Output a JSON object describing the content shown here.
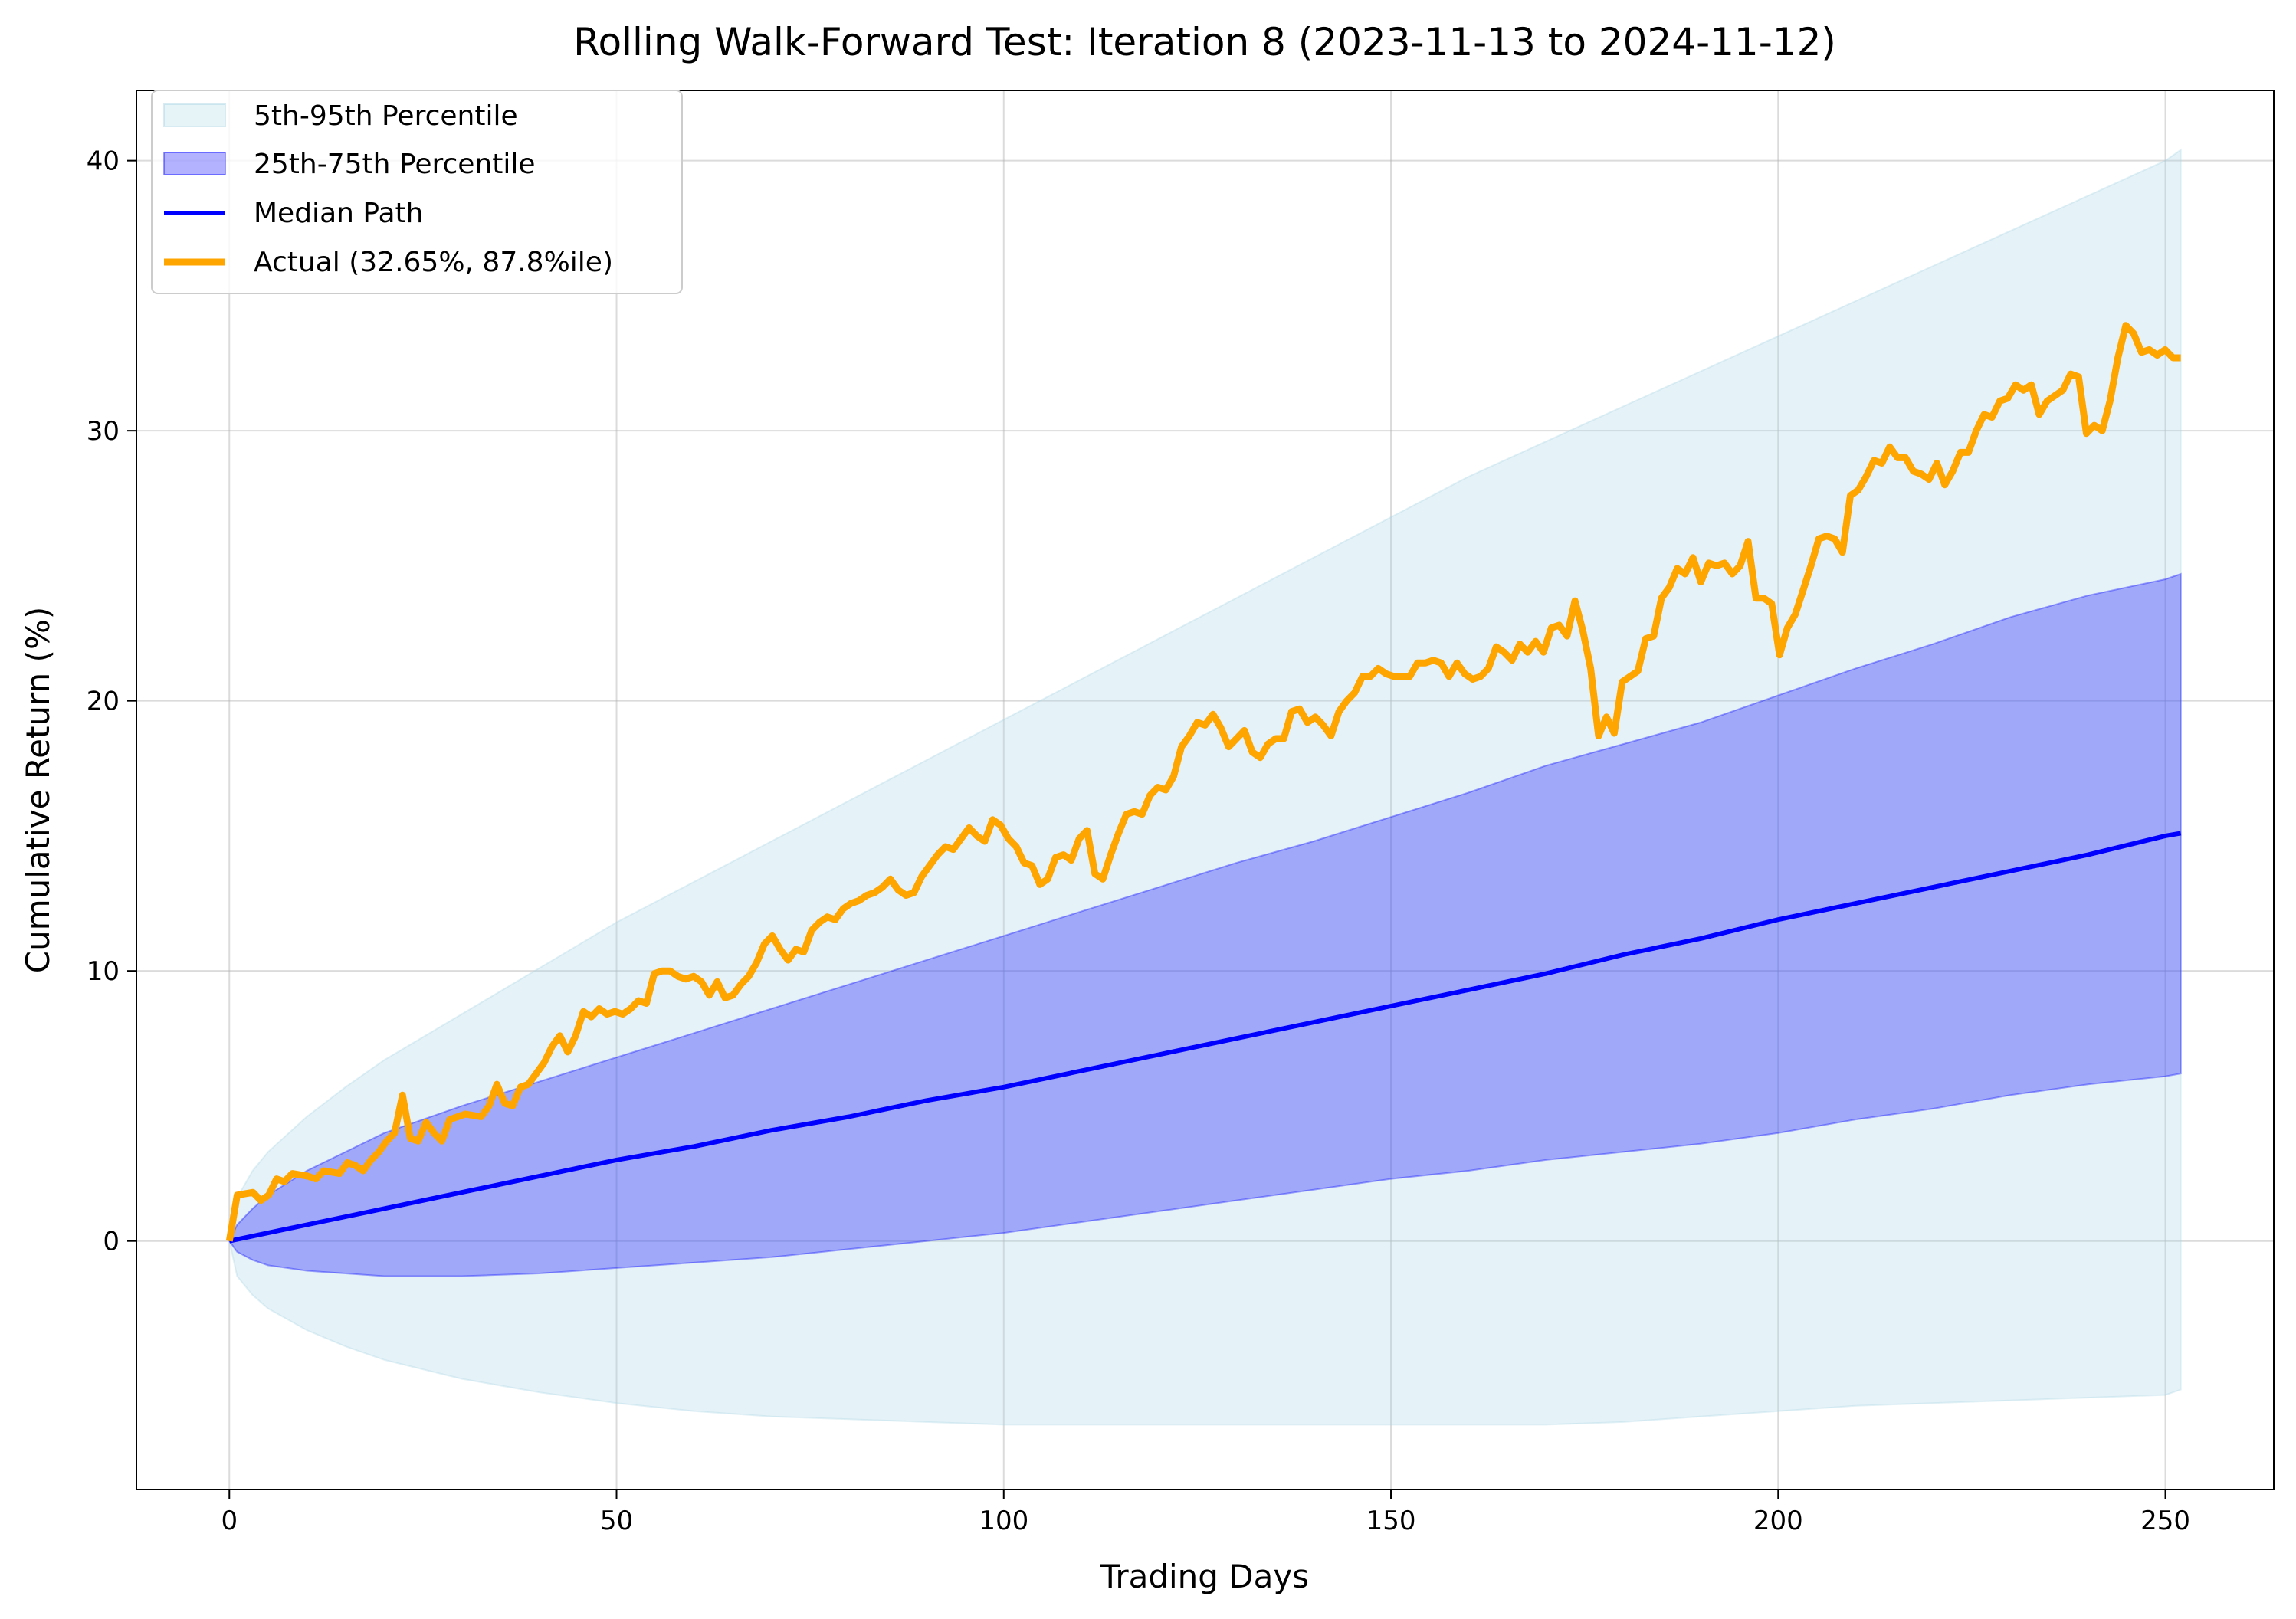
{
  "chart_data": {
    "type": "line",
    "title": "Rolling Walk-Forward Test: Iteration 8 (2023-11-13 to 2024-11-12)",
    "xlabel": "Trading Days",
    "ylabel": "Cumulative Return (%)",
    "xlim": [
      -12,
      264
    ],
    "ylim": [
      -9.2,
      42.6
    ],
    "xticks": [
      0,
      50,
      100,
      150,
      200,
      250
    ],
    "yticks": [
      0,
      10,
      20,
      30,
      40
    ],
    "grid": true,
    "legend_position": "top-left",
    "x": [
      0,
      1,
      3,
      5,
      10,
      15,
      20,
      30,
      40,
      50,
      60,
      70,
      80,
      90,
      100,
      110,
      120,
      130,
      140,
      150,
      160,
      170,
      180,
      190,
      200,
      210,
      220,
      230,
      240,
      250,
      252
    ],
    "series": [
      {
        "name": "5th-95th Percentile",
        "kind": "band",
        "color": "#add8e6",
        "lower": [
          0,
          -1.3,
          -2.0,
          -2.5,
          -3.3,
          -3.9,
          -4.4,
          -5.1,
          -5.6,
          -6.0,
          -6.3,
          -6.5,
          -6.6,
          -6.7,
          -6.8,
          -6.8,
          -6.8,
          -6.8,
          -6.8,
          -6.8,
          -6.8,
          -6.8,
          -6.7,
          -6.5,
          -6.3,
          -6.1,
          -6.0,
          -5.9,
          -5.8,
          -5.7,
          -5.5
        ],
        "upper": [
          0,
          1.6,
          2.6,
          3.3,
          4.6,
          5.7,
          6.7,
          8.4,
          10.1,
          11.8,
          13.3,
          14.8,
          16.3,
          17.8,
          19.3,
          20.8,
          22.3,
          23.8,
          25.3,
          26.8,
          28.3,
          29.6,
          30.9,
          32.2,
          33.5,
          34.8,
          36.1,
          37.4,
          38.7,
          40.0,
          40.4
        ]
      },
      {
        "name": "25th-75th Percentile",
        "kind": "band",
        "color": "#0000ff",
        "lower": [
          0,
          -0.4,
          -0.7,
          -0.9,
          -1.1,
          -1.2,
          -1.3,
          -1.3,
          -1.2,
          -1.0,
          -0.8,
          -0.6,
          -0.3,
          0.0,
          0.3,
          0.7,
          1.1,
          1.5,
          1.9,
          2.3,
          2.6,
          3.0,
          3.3,
          3.6,
          4.0,
          4.5,
          4.9,
          5.4,
          5.8,
          6.1,
          6.2
        ],
        "upper": [
          0,
          0.6,
          1.2,
          1.7,
          2.6,
          3.3,
          4.0,
          5.0,
          5.9,
          6.8,
          7.7,
          8.6,
          9.5,
          10.4,
          11.3,
          12.2,
          13.1,
          14.0,
          14.8,
          15.7,
          16.6,
          17.6,
          18.4,
          19.2,
          20.2,
          21.2,
          22.1,
          23.1,
          23.9,
          24.5,
          24.7
        ]
      },
      {
        "name": "Median Path",
        "kind": "line",
        "color": "#0000ff",
        "values": [
          0,
          0.06,
          0.18,
          0.3,
          0.6,
          0.9,
          1.2,
          1.8,
          2.4,
          3.0,
          3.5,
          4.1,
          4.6,
          5.2,
          5.7,
          6.3,
          6.9,
          7.5,
          8.1,
          8.7,
          9.3,
          9.9,
          10.6,
          11.2,
          11.9,
          12.5,
          13.1,
          13.7,
          14.3,
          15.0,
          15.1
        ]
      }
    ],
    "actual": {
      "name": "Actual (32.65%, 87.8%ile)",
      "color": "#ffa500",
      "points": [
        [
          0,
          0
        ],
        [
          1,
          1.7
        ],
        [
          3,
          1.8
        ],
        [
          4,
          1.5
        ],
        [
          5,
          1.7
        ],
        [
          6,
          2.3
        ],
        [
          7,
          2.2
        ],
        [
          8,
          2.5
        ],
        [
          10,
          2.4
        ],
        [
          11,
          2.3
        ],
        [
          12,
          2.6
        ],
        [
          14,
          2.5
        ],
        [
          15,
          2.9
        ],
        [
          16,
          2.8
        ],
        [
          17,
          2.6
        ],
        [
          18,
          3.0
        ],
        [
          19,
          3.3
        ],
        [
          20,
          3.7
        ],
        [
          21,
          4.0
        ],
        [
          22,
          5.4
        ],
        [
          23,
          3.8
        ],
        [
          24,
          3.7
        ],
        [
          25,
          4.4
        ],
        [
          26,
          4.0
        ],
        [
          27,
          3.7
        ],
        [
          28,
          4.5
        ],
        [
          30,
          4.7
        ],
        [
          32,
          4.6
        ],
        [
          33,
          5.0
        ],
        [
          34,
          5.8
        ],
        [
          35,
          5.1
        ],
        [
          36,
          5.0
        ],
        [
          37,
          5.7
        ],
        [
          38,
          5.8
        ],
        [
          39,
          6.2
        ],
        [
          40,
          6.6
        ],
        [
          41,
          7.2
        ],
        [
          42,
          7.6
        ],
        [
          43,
          7.0
        ],
        [
          44,
          7.6
        ],
        [
          45,
          8.5
        ],
        [
          46,
          8.3
        ],
        [
          47,
          8.6
        ],
        [
          48,
          8.4
        ],
        [
          49,
          8.5
        ],
        [
          50,
          8.4
        ],
        [
          51,
          8.6
        ],
        [
          52,
          8.9
        ],
        [
          53,
          8.8
        ],
        [
          54,
          9.9
        ],
        [
          55,
          10.0
        ],
        [
          56,
          10.0
        ],
        [
          57,
          9.8
        ],
        [
          58,
          9.7
        ],
        [
          59,
          9.8
        ],
        [
          60,
          9.6
        ],
        [
          61,
          9.1
        ],
        [
          62,
          9.6
        ],
        [
          63,
          9.0
        ],
        [
          64,
          9.1
        ],
        [
          65,
          9.5
        ],
        [
          66,
          9.8
        ],
        [
          67,
          10.3
        ],
        [
          68,
          11.0
        ],
        [
          69,
          11.3
        ],
        [
          70,
          10.8
        ],
        [
          71,
          10.4
        ],
        [
          72,
          10.8
        ],
        [
          73,
          10.7
        ],
        [
          74,
          11.5
        ],
        [
          75,
          11.8
        ],
        [
          76,
          12.0
        ],
        [
          77,
          11.9
        ],
        [
          78,
          12.3
        ],
        [
          79,
          12.5
        ],
        [
          80,
          12.6
        ],
        [
          81,
          12.8
        ],
        [
          82,
          12.9
        ],
        [
          83,
          13.1
        ],
        [
          84,
          13.4
        ],
        [
          85,
          13.0
        ],
        [
          86,
          12.8
        ],
        [
          87,
          12.9
        ],
        [
          88,
          13.5
        ],
        [
          89,
          13.9
        ],
        [
          90,
          14.3
        ],
        [
          91,
          14.6
        ],
        [
          92,
          14.5
        ],
        [
          93,
          14.9
        ],
        [
          94,
          15.3
        ],
        [
          95,
          15.0
        ],
        [
          96,
          14.8
        ],
        [
          97,
          15.6
        ],
        [
          98,
          15.4
        ],
        [
          99,
          14.9
        ],
        [
          100,
          14.6
        ],
        [
          101,
          14.0
        ],
        [
          102,
          13.9
        ],
        [
          103,
          13.2
        ],
        [
          104,
          13.4
        ],
        [
          105,
          14.2
        ],
        [
          106,
          14.3
        ],
        [
          107,
          14.1
        ],
        [
          108,
          14.9
        ],
        [
          109,
          15.2
        ],
        [
          110,
          13.6
        ],
        [
          111,
          13.4
        ],
        [
          112,
          14.3
        ],
        [
          113,
          15.1
        ],
        [
          114,
          15.8
        ],
        [
          115,
          15.9
        ],
        [
          116,
          15.8
        ],
        [
          117,
          16.5
        ],
        [
          118,
          16.8
        ],
        [
          119,
          16.7
        ],
        [
          120,
          17.2
        ],
        [
          121,
          18.3
        ],
        [
          122,
          18.7
        ],
        [
          123,
          19.2
        ],
        [
          124,
          19.1
        ],
        [
          125,
          19.5
        ],
        [
          126,
          19.0
        ],
        [
          127,
          18.3
        ],
        [
          128,
          18.6
        ],
        [
          129,
          18.9
        ],
        [
          130,
          18.1
        ],
        [
          131,
          17.9
        ],
        [
          132,
          18.4
        ],
        [
          133,
          18.6
        ],
        [
          134,
          18.6
        ],
        [
          135,
          19.6
        ],
        [
          136,
          19.7
        ],
        [
          137,
          19.2
        ],
        [
          138,
          19.4
        ],
        [
          139,
          19.1
        ],
        [
          140,
          18.7
        ],
        [
          141,
          19.6
        ],
        [
          142,
          20.0
        ],
        [
          143,
          20.3
        ],
        [
          144,
          20.9
        ],
        [
          145,
          20.9
        ],
        [
          146,
          21.2
        ],
        [
          147,
          21.0
        ],
        [
          148,
          20.9
        ],
        [
          149,
          20.9
        ],
        [
          150,
          20.9
        ],
        [
          151,
          21.4
        ],
        [
          152,
          21.4
        ],
        [
          153,
          21.5
        ],
        [
          154,
          21.4
        ],
        [
          155,
          20.9
        ],
        [
          156,
          21.4
        ],
        [
          157,
          21.0
        ],
        [
          158,
          20.8
        ],
        [
          159,
          20.9
        ],
        [
          160,
          21.2
        ],
        [
          161,
          22.0
        ],
        [
          162,
          21.8
        ],
        [
          163,
          21.5
        ],
        [
          164,
          22.1
        ],
        [
          165,
          21.8
        ],
        [
          166,
          22.2
        ],
        [
          167,
          21.8
        ],
        [
          168,
          22.7
        ],
        [
          169,
          22.8
        ],
        [
          170,
          22.4
        ],
        [
          171,
          23.7
        ],
        [
          172,
          22.6
        ],
        [
          173,
          21.2
        ],
        [
          174,
          18.7
        ],
        [
          175,
          19.4
        ],
        [
          176,
          18.8
        ],
        [
          177,
          20.7
        ],
        [
          178,
          20.9
        ],
        [
          179,
          21.1
        ],
        [
          180,
          22.3
        ],
        [
          181,
          22.4
        ],
        [
          182,
          23.8
        ],
        [
          183,
          24.2
        ],
        [
          184,
          24.9
        ],
        [
          185,
          24.7
        ],
        [
          186,
          25.3
        ],
        [
          187,
          24.4
        ],
        [
          188,
          25.1
        ],
        [
          189,
          25.0
        ],
        [
          190,
          25.1
        ],
        [
          191,
          24.7
        ],
        [
          192,
          25.0
        ],
        [
          193,
          25.9
        ],
        [
          194,
          23.8
        ],
        [
          195,
          23.8
        ],
        [
          196,
          23.6
        ],
        [
          197,
          21.7
        ],
        [
          198,
          22.7
        ],
        [
          199,
          23.2
        ],
        [
          200,
          24.1
        ],
        [
          201,
          25.0
        ],
        [
          202,
          26.0
        ],
        [
          203,
          26.1
        ],
        [
          204,
          26.0
        ],
        [
          205,
          25.5
        ],
        [
          206,
          27.6
        ],
        [
          207,
          27.8
        ],
        [
          208,
          28.3
        ],
        [
          209,
          28.9
        ],
        [
          210,
          28.8
        ],
        [
          211,
          29.4
        ],
        [
          212,
          29.0
        ],
        [
          213,
          29.0
        ],
        [
          214,
          28.5
        ],
        [
          215,
          28.4
        ],
        [
          216,
          28.2
        ],
        [
          217,
          28.8
        ],
        [
          218,
          28.0
        ],
        [
          219,
          28.5
        ],
        [
          220,
          29.2
        ],
        [
          221,
          29.2
        ],
        [
          222,
          30.0
        ],
        [
          223,
          30.6
        ],
        [
          224,
          30.5
        ],
        [
          225,
          31.1
        ],
        [
          226,
          31.2
        ],
        [
          227,
          31.7
        ],
        [
          228,
          31.5
        ],
        [
          229,
          31.7
        ],
        [
          230,
          30.6
        ],
        [
          231,
          31.1
        ],
        [
          232,
          31.3
        ],
        [
          233,
          31.5
        ],
        [
          234,
          32.1
        ],
        [
          235,
          32.0
        ],
        [
          236,
          29.9
        ],
        [
          237,
          30.2
        ],
        [
          238,
          30.0
        ],
        [
          239,
          31.1
        ],
        [
          240,
          32.7
        ],
        [
          241,
          33.9
        ],
        [
          242,
          33.6
        ],
        [
          243,
          32.9
        ],
        [
          244,
          33.0
        ],
        [
          245,
          32.8
        ],
        [
          246,
          33.0
        ],
        [
          247,
          32.7
        ],
        [
          248,
          32.7
        ]
      ]
    }
  }
}
